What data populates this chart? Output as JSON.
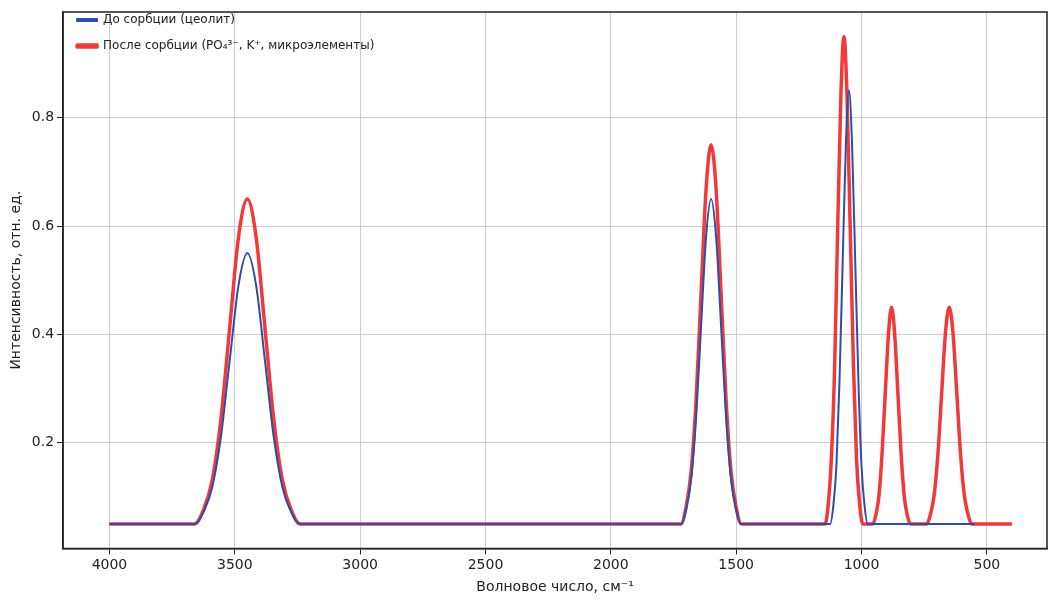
{
  "chart_data": {
    "type": "line",
    "xlabel": "Волновое число, см⁻¹",
    "ylabel": "Интенсивность, отн. ед.",
    "xlim": [
      4185,
      260
    ],
    "xticks": [
      4000,
      3500,
      3000,
      2500,
      2000,
      1500,
      1000,
      500
    ],
    "ylim": [
      0.005,
      0.995
    ],
    "yticks": [
      0.2,
      0.4,
      0.6,
      0.8
    ],
    "grid": true,
    "legend": "top left",
    "marker": "none",
    "line_style": "solid",
    "series": [
      {
        "name": "До сорбции (цеолит)",
        "color": "#2b4ea8",
        "x": [
          4000,
          3660,
          3625,
          3590,
          3555,
          3520,
          3485,
          3450,
          3415,
          3380,
          3345,
          3310,
          3275,
          3240,
          1720,
          1700,
          1680,
          1660,
          1640,
          1620,
          1600,
          1580,
          1560,
          1540,
          1520,
          1500,
          1480,
          1125,
          1112,
          1100,
          1088,
          1075,
          1062,
          1050,
          1038,
          1025,
          1012,
          1000,
          988,
          975,
          550
        ],
        "values": [
          0.05,
          0.05,
          0.072,
          0.118,
          0.212,
          0.353,
          0.491,
          0.55,
          0.491,
          0.353,
          0.212,
          0.118,
          0.072,
          0.05,
          0.05,
          0.076,
          0.131,
          0.245,
          0.414,
          0.58,
          0.65,
          0.58,
          0.414,
          0.245,
          0.131,
          0.076,
          0.05,
          0.05,
          0.085,
          0.158,
          0.31,
          0.535,
          0.756,
          0.85,
          0.756,
          0.535,
          0.31,
          0.158,
          0.085,
          0.05,
          0.05
        ]
      },
      {
        "name": "После сорбции (PO₄³⁻, K⁺, микроэлементы)",
        "color": "#f03a3a",
        "x": [
          4000,
          3660,
          3625,
          3590,
          3555,
          3520,
          3485,
          3450,
          3415,
          3380,
          3345,
          3310,
          3275,
          3240,
          1720,
          1700,
          1680,
          1660,
          1640,
          1620,
          1600,
          1580,
          1560,
          1540,
          1520,
          1500,
          1480,
          1145,
          1132,
          1120,
          1107,
          1095,
          1082,
          1070,
          1058,
          1045,
          1032,
          1020,
          1008,
          995,
          955,
          942,
          930,
          918,
          905,
          892,
          880,
          868,
          855,
          842,
          830,
          818,
          805,
          740,
          725,
          710,
          695,
          680,
          665,
          650,
          635,
          620,
          605,
          590,
          575,
          560,
          400
        ],
        "values": [
          0.05,
          0.05,
          0.076,
          0.131,
          0.245,
          0.414,
          0.58,
          0.65,
          0.58,
          0.414,
          0.245,
          0.131,
          0.076,
          0.05,
          0.05,
          0.081,
          0.145,
          0.277,
          0.475,
          0.668,
          0.75,
          0.668,
          0.475,
          0.277,
          0.145,
          0.081,
          0.05,
          0.05,
          0.09,
          0.172,
          0.342,
          0.596,
          0.844,
          0.95,
          0.844,
          0.596,
          0.342,
          0.172,
          0.09,
          0.05,
          0.05,
          0.068,
          0.104,
          0.18,
          0.293,
          0.403,
          0.45,
          0.403,
          0.293,
          0.18,
          0.104,
          0.068,
          0.05,
          0.05,
          0.068,
          0.104,
          0.18,
          0.293,
          0.403,
          0.45,
          0.403,
          0.293,
          0.18,
          0.104,
          0.068,
          0.05,
          0.05
        ]
      }
    ]
  }
}
